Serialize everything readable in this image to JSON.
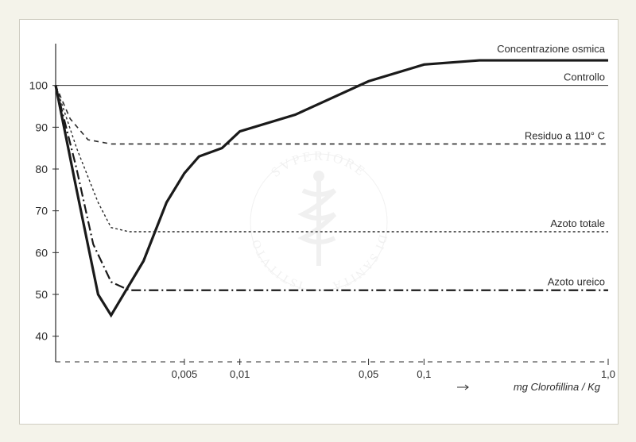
{
  "chart": {
    "type": "line",
    "background_color": "#ffffff",
    "page_background": "#f4f3ea",
    "text_color": "#2c2c2c",
    "axis_color": "#2b2b2b",
    "y": {
      "min": 35,
      "max": 110,
      "ticks": [
        40,
        50,
        60,
        70,
        80,
        90,
        100
      ],
      "tick_fontsize": 14
    },
    "x": {
      "log": true,
      "min": 0.001,
      "max": 1.0,
      "ticks": [
        0.005,
        0.01,
        0.05,
        0.1,
        1.0
      ],
      "tick_labels": [
        "0,005",
        "0,01",
        "0,05",
        "0,1",
        "1,0"
      ],
      "tick_fontsize": 13,
      "axis_label": "mg  Clorofillina / Kg",
      "axis_label_fontsize": 13
    },
    "series": {
      "concentrazione": {
        "label": "Concentrazione osmica",
        "color": "#1a1a1a",
        "width": 3.2,
        "dash": "none",
        "points": [
          [
            0.001,
            100
          ],
          [
            0.0013,
            75
          ],
          [
            0.0017,
            50
          ],
          [
            0.002,
            45
          ],
          [
            0.003,
            58
          ],
          [
            0.004,
            72
          ],
          [
            0.005,
            79
          ],
          [
            0.006,
            83
          ],
          [
            0.008,
            85
          ],
          [
            0.01,
            89
          ],
          [
            0.02,
            93
          ],
          [
            0.05,
            101
          ],
          [
            0.1,
            105
          ],
          [
            0.2,
            106
          ],
          [
            1.0,
            106
          ]
        ]
      },
      "controllo": {
        "label": "Controllo",
        "color": "#2b2b2b",
        "width": 1.0,
        "dash": "none",
        "y_const": 100
      },
      "residuo": {
        "label": "Residuo a 110° C",
        "color": "#2b2b2b",
        "width": 1.6,
        "dash": "6,5",
        "points": [
          [
            0.001,
            100
          ],
          [
            0.0012,
            92
          ],
          [
            0.0015,
            87
          ],
          [
            0.002,
            86
          ],
          [
            0.003,
            86
          ],
          [
            1.0,
            86
          ]
        ]
      },
      "azoto_totale": {
        "label": "Azoto totale",
        "color": "#2b2b2b",
        "width": 1.4,
        "dash": "3,3",
        "points": [
          [
            0.001,
            100
          ],
          [
            0.0013,
            85
          ],
          [
            0.0017,
            72
          ],
          [
            0.002,
            66
          ],
          [
            0.0025,
            65
          ],
          [
            0.003,
            65
          ],
          [
            1.0,
            65
          ]
        ]
      },
      "azoto_ureico": {
        "label": "Azoto ureico",
        "color": "#1a1a1a",
        "width": 2.2,
        "dash": "12,4,2,4",
        "points": [
          [
            0.001,
            100
          ],
          [
            0.0013,
            80
          ],
          [
            0.0016,
            62
          ],
          [
            0.002,
            53
          ],
          [
            0.0025,
            51
          ],
          [
            0.003,
            51
          ],
          [
            1.0,
            51
          ]
        ]
      }
    },
    "label_fontsize": 13
  },
  "watermark": {
    "text_top": "SVPERIORE",
    "text_left": "ISTITVTO",
    "text_right": "DI  SANITÀ",
    "color": "#9e9e9e"
  }
}
